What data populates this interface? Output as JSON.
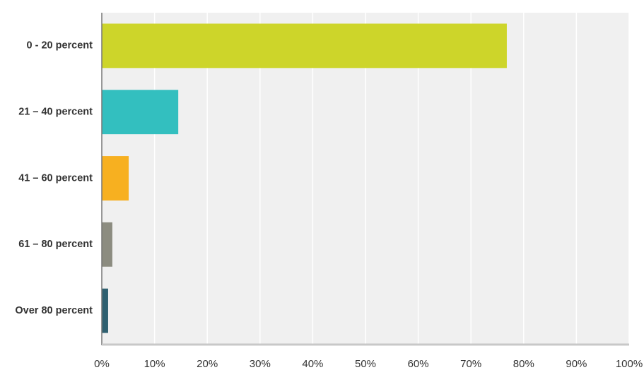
{
  "chart_data": {
    "type": "hbar",
    "categories": [
      "0 - 20 percent",
      "21 – 40 percent",
      "41 – 60 percent",
      "61 – 80 percent",
      "Over 80 percent"
    ],
    "values": [
      76.8,
      14.5,
      5.1,
      2.0,
      1.2
    ],
    "colors": [
      "#cdd52a",
      "#33bfbf",
      "#f7b020",
      "#8c8c80",
      "#2f6070"
    ],
    "xlim": [
      0,
      100
    ],
    "xticks": [
      {
        "value": 0,
        "label": "0%"
      },
      {
        "value": 10,
        "label": "10%"
      },
      {
        "value": 20,
        "label": "20%"
      },
      {
        "value": 30,
        "label": "30%"
      },
      {
        "value": 40,
        "label": "40%"
      },
      {
        "value": 50,
        "label": "50%"
      },
      {
        "value": 60,
        "label": "60%"
      },
      {
        "value": 70,
        "label": "70%"
      },
      {
        "value": 80,
        "label": "80%"
      },
      {
        "value": 90,
        "label": "90%"
      },
      {
        "value": 100,
        "label": "100%"
      }
    ],
    "grid": true
  }
}
